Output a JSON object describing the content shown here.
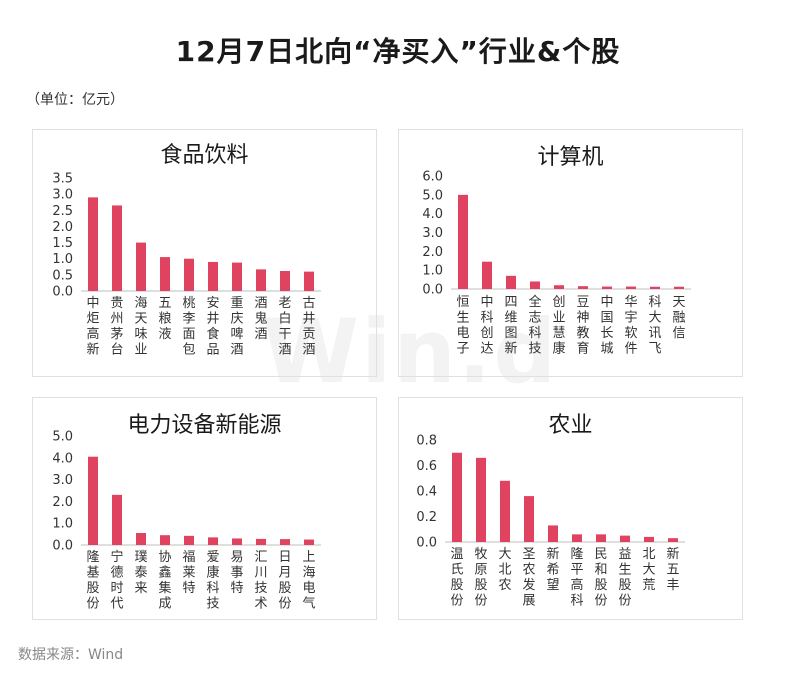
{
  "header": {
    "title": "12月7日北向“净买入”行业&个股",
    "unit": "（单位：亿元）",
    "source": "数据来源：Wind",
    "watermark": "Win.d"
  },
  "colors": {
    "bar": "#e0435f",
    "axis": "#bfbfbf"
  },
  "chart_data": [
    {
      "type": "bar",
      "title": "食品饮料",
      "categories": [
        "中炬高新",
        "贵州茅台",
        "海天味业",
        "五粮液",
        "桃李面包",
        "安井食品",
        "重庆啤酒",
        "酒鬼酒",
        "老白干酒",
        "古井贡酒"
      ],
      "values": [
        2.9,
        2.65,
        1.5,
        1.05,
        1.0,
        0.9,
        0.88,
        0.67,
        0.62,
        0.6
      ],
      "ylim": [
        0,
        3.5
      ],
      "yticks": [
        "0.0",
        "0.5",
        "1.0",
        "1.5",
        "2.0",
        "2.5",
        "3.0",
        "3.5"
      ],
      "grid": false
    },
    {
      "type": "bar",
      "title": "计算机",
      "categories": [
        "恒生电子",
        "中科创达",
        "四维图新",
        "全志科技",
        "创业慧康",
        "豆神教育",
        "中国长城",
        "华宇软件",
        "科大讯飞",
        "天融信"
      ],
      "values": [
        5.0,
        1.45,
        0.7,
        0.4,
        0.2,
        0.15,
        0.13,
        0.13,
        0.12,
        0.12
      ],
      "ylim": [
        0,
        6.0
      ],
      "yticks": [
        "0.0",
        "1.0",
        "2.0",
        "3.0",
        "4.0",
        "5.0",
        "6.0"
      ],
      "grid": false
    },
    {
      "type": "bar",
      "title": "电力设备新能源",
      "categories": [
        "隆基股份",
        "宁德时代",
        "璞泰来",
        "协鑫集成",
        "福莱特",
        "爱康科技",
        "易事特",
        "汇川技术",
        "日月股份",
        "上海电气"
      ],
      "values": [
        4.05,
        2.3,
        0.55,
        0.45,
        0.42,
        0.35,
        0.3,
        0.28,
        0.27,
        0.25
      ],
      "ylim": [
        0,
        5.0
      ],
      "yticks": [
        "0.0",
        "1.0",
        "2.0",
        "3.0",
        "4.0",
        "5.0"
      ],
      "grid": false
    },
    {
      "type": "bar",
      "title": "农业",
      "categories": [
        "温氏股份",
        "牧原股份",
        "大北农",
        "圣农发展",
        "新希望",
        "隆平高科",
        "民和股份",
        "益生股份",
        "北大荒",
        "新五丰"
      ],
      "values": [
        0.7,
        0.66,
        0.48,
        0.36,
        0.13,
        0.06,
        0.06,
        0.05,
        0.04,
        0.03
      ],
      "ylim": [
        0,
        0.8
      ],
      "yticks": [
        "0.0",
        "0.2",
        "0.4",
        "0.6",
        "0.8"
      ],
      "grid": false
    }
  ]
}
